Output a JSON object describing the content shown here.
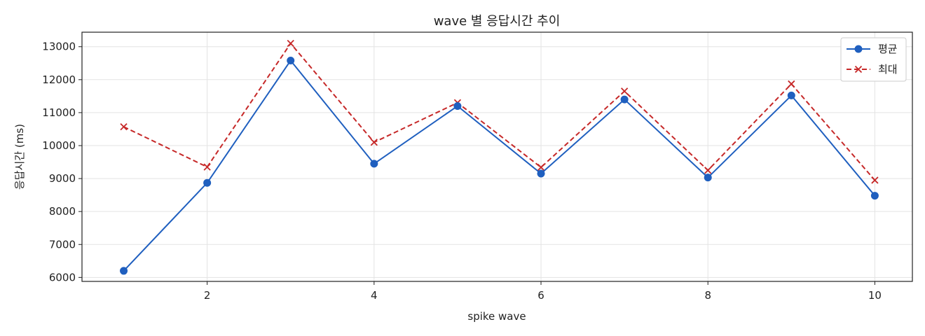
{
  "chart_data": {
    "type": "line",
    "title": "wave 별 응답시간 추이",
    "xlabel": "spike wave",
    "ylabel": "응답시간 (ms)",
    "x": [
      1,
      2,
      3,
      4,
      5,
      6,
      7,
      8,
      9,
      10
    ],
    "xticks": [
      2,
      4,
      6,
      8,
      10
    ],
    "yticks": [
      6000,
      7000,
      8000,
      9000,
      10000,
      11000,
      12000,
      13000
    ],
    "xlim": [
      0.5,
      10.45
    ],
    "ylim": [
      5880,
      13440
    ],
    "grid": true,
    "legend_position": "top-right",
    "series": [
      {
        "name": "평균",
        "color": "#1f5fbf",
        "line_style": "solid",
        "marker": "circle",
        "values": [
          6200,
          8870,
          12580,
          9450,
          11200,
          9150,
          11400,
          9030,
          11520,
          8480
        ]
      },
      {
        "name": "최대",
        "color": "#c62828",
        "line_style": "dashed",
        "marker": "x",
        "values": [
          10570,
          9350,
          13100,
          10100,
          11300,
          9340,
          11650,
          9250,
          11870,
          8950
        ]
      }
    ]
  }
}
